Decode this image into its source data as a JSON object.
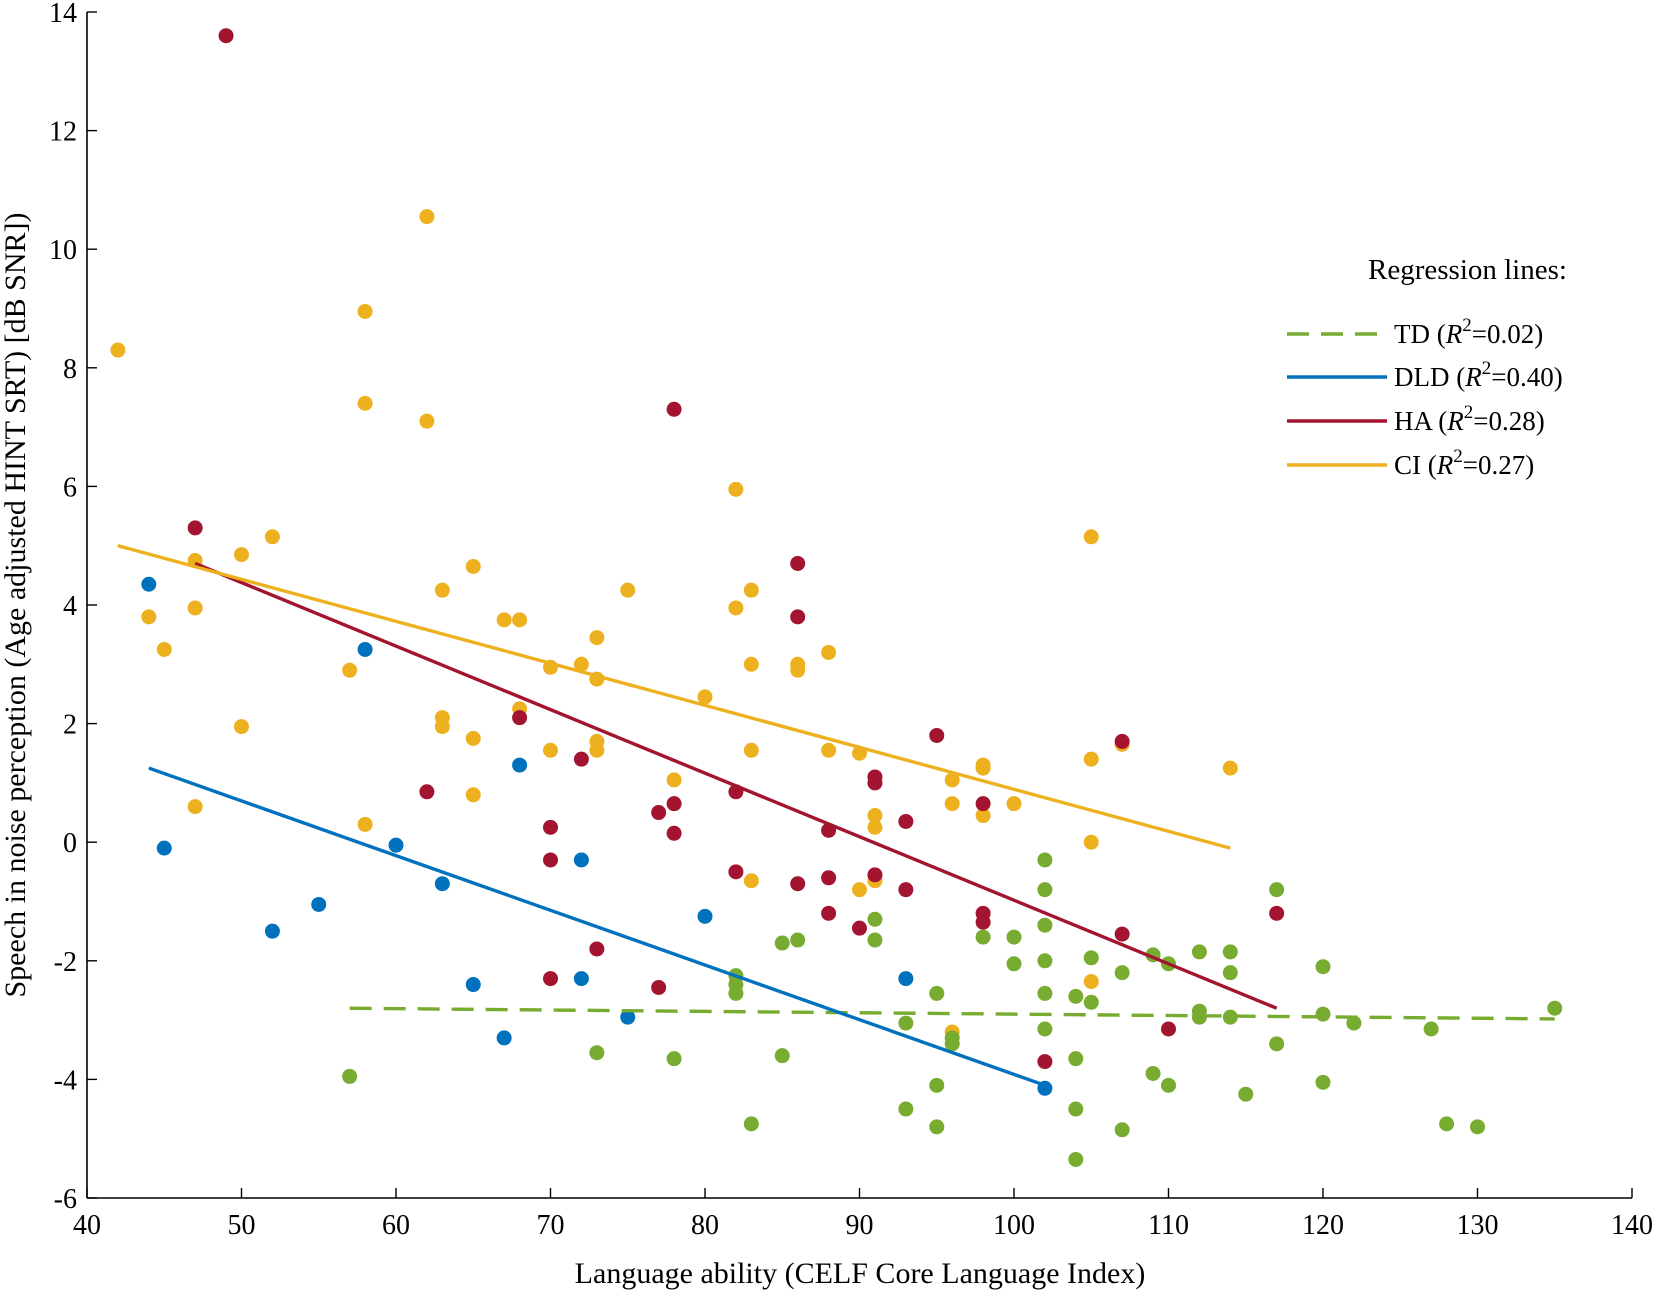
{
  "chart_data": {
    "type": "scatter",
    "title": "",
    "xlabel": "Language ability (CELF Core Language Index)",
    "ylabel": "Speech in noise perception (Age adjusted HINT SRT) [dB SNR])",
    "xlim": [
      40,
      140
    ],
    "ylim": [
      -6,
      14
    ],
    "xticks": [
      40,
      50,
      60,
      70,
      80,
      90,
      100,
      110,
      120,
      130,
      140
    ],
    "yticks": [
      -6,
      -4,
      -2,
      0,
      2,
      4,
      6,
      8,
      10,
      12,
      14
    ],
    "grid": false,
    "legend": {
      "title": "Regression lines:",
      "position": "right",
      "entries": [
        {
          "group": "TD",
          "label_prefix": "TD (",
          "r2_symbol": "R",
          "r2_power": "2",
          "r2_value": "=0.02)",
          "style": "dashed",
          "color": "#77AC30"
        },
        {
          "group": "DLD",
          "label_prefix": "DLD (",
          "r2_symbol": "R",
          "r2_power": "2",
          "r2_value": "=0.40)",
          "style": "solid",
          "color": "#0072BD"
        },
        {
          "group": "HA",
          "label_prefix": "HA (",
          "r2_symbol": "R",
          "r2_power": "2",
          "r2_value": "=0.28)",
          "style": "solid",
          "color": "#A2142F"
        },
        {
          "group": "CI",
          "label_prefix": "CI (",
          "r2_symbol": "R",
          "r2_power": "2",
          "r2_value": "=0.27)",
          "style": "solid",
          "color": "#EDB120"
        }
      ]
    },
    "series": [
      {
        "name": "CI",
        "color": "#EDB120",
        "points": [
          [
            42,
            8.3
          ],
          [
            44,
            3.8
          ],
          [
            45,
            3.25
          ],
          [
            47,
            4.75
          ],
          [
            47,
            3.95
          ],
          [
            47,
            0.6
          ],
          [
            50,
            4.85
          ],
          [
            50,
            1.95
          ],
          [
            52,
            5.15
          ],
          [
            57,
            2.9
          ],
          [
            58,
            8.95
          ],
          [
            58,
            7.4
          ],
          [
            58,
            0.3
          ],
          [
            62,
            10.55
          ],
          [
            62,
            7.1
          ],
          [
            63,
            4.25
          ],
          [
            63,
            2.1
          ],
          [
            63,
            1.95
          ],
          [
            65,
            4.65
          ],
          [
            65,
            1.75
          ],
          [
            65,
            0.8
          ],
          [
            67,
            3.75
          ],
          [
            68,
            3.75
          ],
          [
            68,
            2.25
          ],
          [
            70,
            2.95
          ],
          [
            70,
            1.55
          ],
          [
            72,
            3.0
          ],
          [
            73,
            3.45
          ],
          [
            73,
            2.75
          ],
          [
            73,
            1.7
          ],
          [
            73,
            1.55
          ],
          [
            75,
            4.25
          ],
          [
            78,
            1.05
          ],
          [
            80,
            2.45
          ],
          [
            82,
            5.95
          ],
          [
            82,
            3.95
          ],
          [
            83,
            4.25
          ],
          [
            83,
            3.0
          ],
          [
            83,
            1.55
          ],
          [
            83,
            -0.65
          ],
          [
            86,
            3.0
          ],
          [
            86,
            2.9
          ],
          [
            88,
            3.2
          ],
          [
            88,
            1.55
          ],
          [
            90,
            1.5
          ],
          [
            90,
            -0.8
          ],
          [
            91,
            0.45
          ],
          [
            91,
            0.25
          ],
          [
            91,
            -0.65
          ],
          [
            96,
            1.05
          ],
          [
            96,
            0.65
          ],
          [
            96,
            -3.2
          ],
          [
            98,
            1.3
          ],
          [
            98,
            1.25
          ],
          [
            98,
            0.45
          ],
          [
            100,
            0.65
          ],
          [
            105,
            5.15
          ],
          [
            105,
            1.4
          ],
          [
            105,
            0.0
          ],
          [
            105,
            -2.35
          ],
          [
            107,
            1.65
          ],
          [
            114,
            1.25
          ]
        ]
      },
      {
        "name": "HA",
        "color": "#A2142F",
        "points": [
          [
            47,
            5.3
          ],
          [
            49,
            13.6
          ],
          [
            62,
            0.85
          ],
          [
            68,
            2.1
          ],
          [
            70,
            0.25
          ],
          [
            70,
            -0.3
          ],
          [
            70,
            -2.3
          ],
          [
            72,
            1.4
          ],
          [
            73,
            -1.8
          ],
          [
            77,
            0.5
          ],
          [
            77,
            -2.45
          ],
          [
            78,
            7.3
          ],
          [
            78,
            0.65
          ],
          [
            78,
            0.15
          ],
          [
            82,
            0.85
          ],
          [
            82,
            -0.5
          ],
          [
            86,
            4.7
          ],
          [
            86,
            3.8
          ],
          [
            86,
            -0.7
          ],
          [
            88,
            0.2
          ],
          [
            88,
            -0.6
          ],
          [
            88,
            -1.2
          ],
          [
            90,
            -1.45
          ],
          [
            91,
            1.1
          ],
          [
            91,
            1.0
          ],
          [
            91,
            -0.55
          ],
          [
            93,
            0.35
          ],
          [
            93,
            -0.8
          ],
          [
            95,
            1.8
          ],
          [
            98,
            0.65
          ],
          [
            98,
            -1.2
          ],
          [
            98,
            -1.35
          ],
          [
            102,
            -3.7
          ],
          [
            107,
            1.7
          ],
          [
            107,
            -1.55
          ],
          [
            110,
            -3.15
          ],
          [
            117,
            -1.2
          ]
        ]
      },
      {
        "name": "DLD",
        "color": "#0072BD",
        "points": [
          [
            44,
            4.35
          ],
          [
            45,
            -0.1
          ],
          [
            52,
            -1.5
          ],
          [
            55,
            -1.05
          ],
          [
            58,
            3.25
          ],
          [
            60,
            -0.05
          ],
          [
            63,
            -0.7
          ],
          [
            65,
            -2.4
          ],
          [
            67,
            -3.3
          ],
          [
            68,
            1.3
          ],
          [
            72,
            -0.3
          ],
          [
            72,
            -2.3
          ],
          [
            75,
            -2.95
          ],
          [
            80,
            -1.25
          ],
          [
            93,
            -2.3
          ],
          [
            102,
            -4.15
          ]
        ]
      },
      {
        "name": "TD",
        "color": "#77AC30",
        "points": [
          [
            57,
            -3.95
          ],
          [
            73,
            -3.55
          ],
          [
            78,
            -3.65
          ],
          [
            82,
            -2.25
          ],
          [
            82,
            -2.4
          ],
          [
            82,
            -2.55
          ],
          [
            83,
            -4.75
          ],
          [
            85,
            -1.7
          ],
          [
            85,
            -3.6
          ],
          [
            86,
            -1.65
          ],
          [
            91,
            -1.3
          ],
          [
            91,
            -1.65
          ],
          [
            93,
            -3.05
          ],
          [
            93,
            -4.5
          ],
          [
            95,
            -2.55
          ],
          [
            95,
            -4.1
          ],
          [
            95,
            -4.8
          ],
          [
            96,
            -3.3
          ],
          [
            96,
            -3.4
          ],
          [
            98,
            -1.6
          ],
          [
            100,
            -1.6
          ],
          [
            100,
            -2.05
          ],
          [
            102,
            -0.3
          ],
          [
            102,
            -0.8
          ],
          [
            102,
            -1.4
          ],
          [
            102,
            -2.0
          ],
          [
            102,
            -2.55
          ],
          [
            102,
            -3.15
          ],
          [
            104,
            -2.6
          ],
          [
            104,
            -3.65
          ],
          [
            104,
            -4.5
          ],
          [
            104,
            -5.35
          ],
          [
            105,
            -1.95
          ],
          [
            105,
            -2.7
          ],
          [
            107,
            -2.2
          ],
          [
            107,
            -4.85
          ],
          [
            109,
            -1.9
          ],
          [
            109,
            -3.9
          ],
          [
            110,
            -2.05
          ],
          [
            110,
            -4.1
          ],
          [
            112,
            -1.85
          ],
          [
            112,
            -2.85
          ],
          [
            112,
            -2.95
          ],
          [
            114,
            -1.85
          ],
          [
            114,
            -2.2
          ],
          [
            114,
            -2.95
          ],
          [
            115,
            -4.25
          ],
          [
            117,
            -0.8
          ],
          [
            117,
            -3.4
          ],
          [
            120,
            -2.1
          ],
          [
            120,
            -2.9
          ],
          [
            120,
            -4.05
          ],
          [
            122,
            -3.05
          ],
          [
            127,
            -3.15
          ],
          [
            128,
            -4.75
          ],
          [
            130,
            -4.8
          ],
          [
            135,
            -2.8
          ]
        ]
      }
    ],
    "regression_lines": [
      {
        "name": "TD",
        "x": [
          57,
          135
        ],
        "y": [
          -2.8,
          -2.98
        ],
        "style": "dashed",
        "color": "#77AC30"
      },
      {
        "name": "DLD",
        "x": [
          44,
          102
        ],
        "y": [
          1.25,
          -4.1
        ],
        "style": "solid",
        "color": "#0072BD"
      },
      {
        "name": "HA",
        "x": [
          47,
          117
        ],
        "y": [
          4.7,
          -2.8
        ],
        "style": "solid",
        "color": "#A2142F"
      },
      {
        "name": "CI",
        "x": [
          42,
          114
        ],
        "y": [
          5.0,
          -0.1
        ],
        "style": "solid",
        "color": "#EDB120"
      }
    ]
  }
}
